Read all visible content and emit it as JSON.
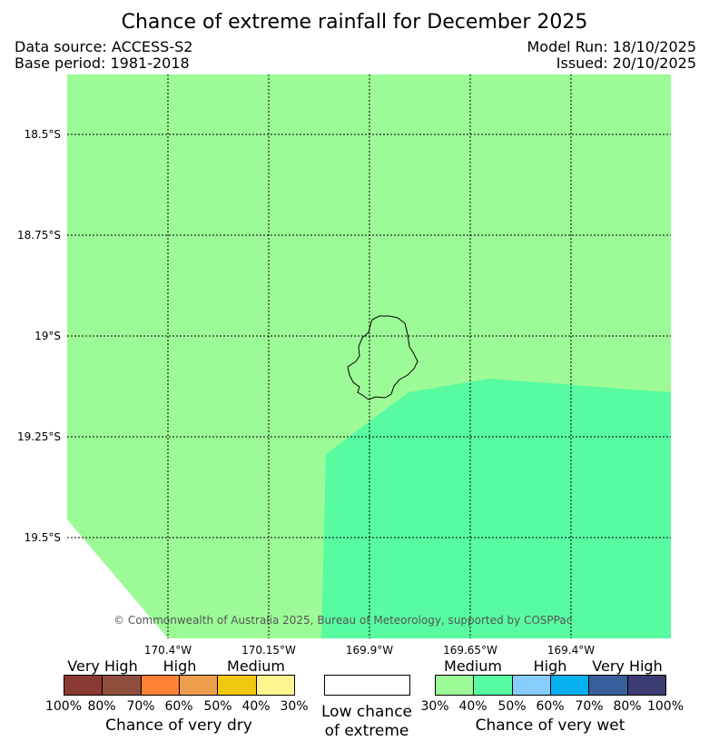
{
  "title": "Chance of extreme rainfall for December 2025",
  "data_source": "Data source: ACCESS-S2",
  "base_period": "Base period: 1981-2018",
  "model_run": "Model Run: 18/10/2025",
  "issued": "Issued: 20/10/2025",
  "copyright": "© Commonwealth of Australia 2025, Bureau of Meteorology, supported by COSPPac",
  "map": {
    "lat_labels": [
      "18.5°S",
      "18.75°S",
      "19°S",
      "19.25°S",
      "19.5°S"
    ],
    "lon_labels": [
      "170.4°W",
      "170.15°W",
      "169.9°W",
      "169.65°W",
      "169.4°W"
    ],
    "regions": [
      {
        "category": "Medium (30%–40%) chance of very wet",
        "color": "#9cfb96"
      },
      {
        "category": "Medium (40%–50%) chance of very wet",
        "color": "#58fba0"
      }
    ]
  },
  "legend": {
    "dry": {
      "categories": [
        "Very High",
        "High",
        "Medium"
      ],
      "colors": [
        "#8b3a33",
        "#8f4e3c",
        "#ff8131",
        "#ee9d4c",
        "#f0c80f",
        "#fef58e"
      ],
      "ticks": [
        "100%",
        "80%",
        "70%",
        "60%",
        "50%",
        "40%",
        "30%"
      ],
      "caption": "Chance of very dry"
    },
    "neutral": {
      "color": "#ffffff",
      "caption_line1": "Low chance",
      "caption_line2": "of extreme"
    },
    "wet": {
      "categories": [
        "Medium",
        "High",
        "Very High"
      ],
      "colors": [
        "#9cfb96",
        "#58fba0",
        "#86ccfc",
        "#05b1ee",
        "#375f9c",
        "#3c3b72"
      ],
      "ticks": [
        "30%",
        "40%",
        "50%",
        "60%",
        "70%",
        "80%",
        "100%"
      ],
      "caption": "Chance of very wet"
    }
  }
}
